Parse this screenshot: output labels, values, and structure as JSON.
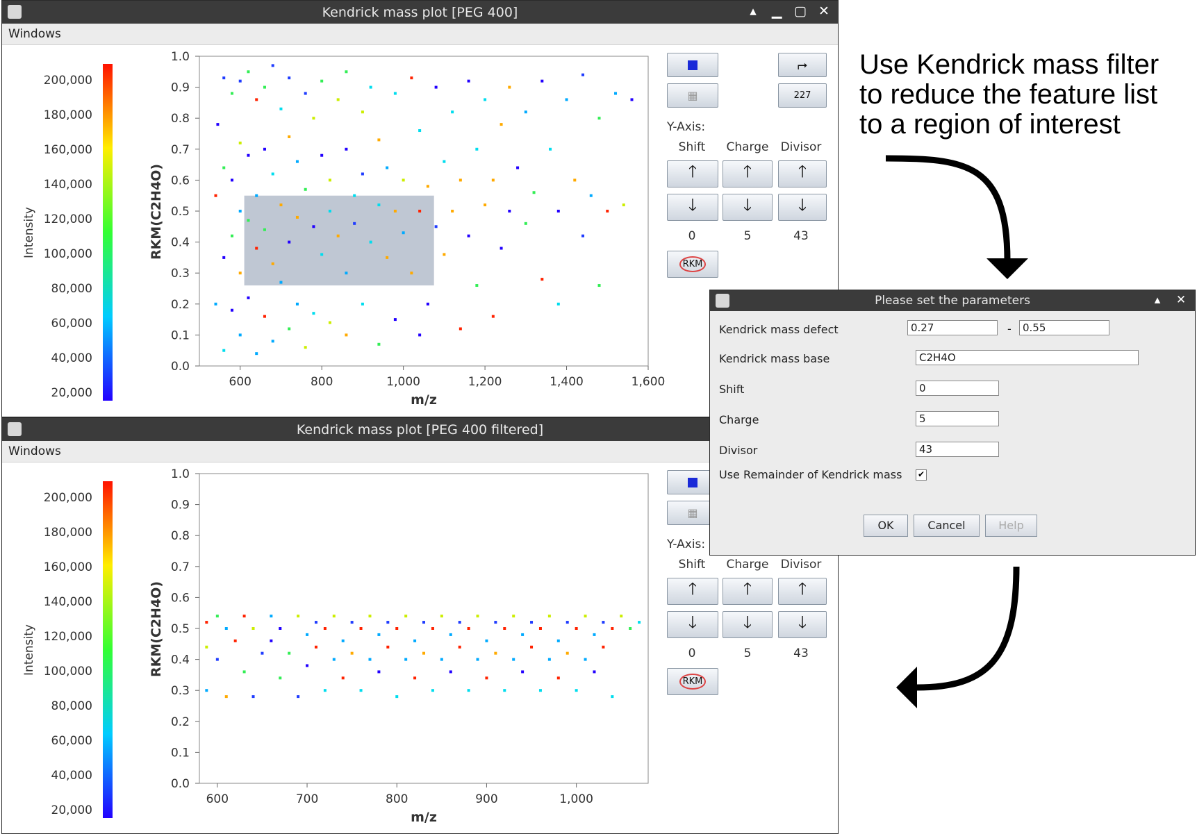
{
  "annotation": {
    "lines": [
      "Use Kendrick mass filter",
      "to reduce the feature list",
      "to a region of interest"
    ]
  },
  "menu_label": "Windows",
  "colorbar": {
    "label": "Intensity",
    "ticks": [
      "200,000",
      "180,000",
      "160,000",
      "140,000",
      "120,000",
      "100,000",
      "80,000",
      "60,000",
      "40,000",
      "20,000"
    ]
  },
  "side_panel": {
    "yaxis_label": "Y-Axis:",
    "col_labels": [
      "Shift",
      "Charge",
      "Divisor"
    ],
    "values": [
      "0",
      "5",
      "43"
    ],
    "rkm_label": "RKM",
    "up_glyph": "🡑",
    "down_glyph": "🡓"
  },
  "top_window": {
    "title": "Kendrick mass plot [PEG 400]"
  },
  "bottom_window": {
    "title": "Kendrick mass plot [PEG 400 filtered]"
  },
  "dialog": {
    "title": "Please set the parameters",
    "kmd_label": "Kendrick mass defect",
    "kmd_min": "0.27",
    "kmd_sep": "-",
    "kmd_max": "0.55",
    "base_label": "Kendrick mass base",
    "base_value": "C2H4O",
    "shift_label": "Shift",
    "shift_value": "0",
    "charge_label": "Charge",
    "charge_value": "5",
    "divisor_label": "Divisor",
    "divisor_value": "43",
    "remainder_label": "Use Remainder of Kendrick mass",
    "remainder_checked": true,
    "ok_label": "OK",
    "cancel_label": "Cancel",
    "help_label": "Help"
  },
  "chart_data": [
    {
      "type": "scatter",
      "title": "",
      "xlabel": "m/z",
      "ylabel": "RKM(C2H4O)",
      "xlim": [
        500,
        1600
      ],
      "ylim": [
        0,
        1
      ],
      "xticks": [
        "600",
        "800",
        "1,000",
        "1,200",
        "1,400",
        "1,600"
      ],
      "yticks": [
        "0.0",
        "0.1",
        "0.2",
        "0.3",
        "0.4",
        "0.5",
        "0.6",
        "0.7",
        "0.8",
        "0.9",
        "1.0"
      ],
      "selection_region": {
        "x": [
          610,
          1075
        ],
        "y": [
          0.26,
          0.55
        ]
      },
      "series": [
        {
          "points": [
            [
              540,
              0.55
            ],
            [
              540,
              0.2
            ],
            [
              545,
              0.78
            ],
            [
              560,
              0.93
            ],
            [
              560,
              0.64
            ],
            [
              560,
              0.35
            ],
            [
              560,
              0.05
            ],
            [
              580,
              0.88
            ],
            [
              580,
              0.6
            ],
            [
              580,
              0.42
            ],
            [
              580,
              0.18
            ],
            [
              600,
              0.92
            ],
            [
              600,
              0.72
            ],
            [
              600,
              0.5
            ],
            [
              600,
              0.3
            ],
            [
              600,
              0.1
            ],
            [
              620,
              0.95
            ],
            [
              620,
              0.68
            ],
            [
              620,
              0.47
            ],
            [
              620,
              0.22
            ],
            [
              640,
              0.86
            ],
            [
              640,
              0.55
            ],
            [
              640,
              0.38
            ],
            [
              640,
              0.04
            ],
            [
              660,
              0.9
            ],
            [
              660,
              0.7
            ],
            [
              660,
              0.44
            ],
            [
              660,
              0.16
            ],
            [
              680,
              0.97
            ],
            [
              680,
              0.62
            ],
            [
              680,
              0.33
            ],
            [
              680,
              0.08
            ],
            [
              700,
              0.83
            ],
            [
              700,
              0.52
            ],
            [
              700,
              0.27
            ],
            [
              720,
              0.93
            ],
            [
              720,
              0.74
            ],
            [
              720,
              0.4
            ],
            [
              720,
              0.12
            ],
            [
              740,
              0.66
            ],
            [
              740,
              0.48
            ],
            [
              740,
              0.2
            ],
            [
              760,
              0.88
            ],
            [
              760,
              0.57
            ],
            [
              760,
              0.06
            ],
            [
              780,
              0.8
            ],
            [
              780,
              0.45
            ],
            [
              780,
              0.17
            ],
            [
              800,
              0.92
            ],
            [
              800,
              0.68
            ],
            [
              800,
              0.36
            ],
            [
              820,
              0.6
            ],
            [
              820,
              0.5
            ],
            [
              820,
              0.14
            ],
            [
              840,
              0.86
            ],
            [
              840,
              0.42
            ],
            [
              860,
              0.95
            ],
            [
              860,
              0.7
            ],
            [
              860,
              0.3
            ],
            [
              860,
              0.1
            ],
            [
              880,
              0.55
            ],
            [
              880,
              0.46
            ],
            [
              900,
              0.82
            ],
            [
              900,
              0.62
            ],
            [
              900,
              0.2
            ],
            [
              920,
              0.9
            ],
            [
              920,
              0.4
            ],
            [
              940,
              0.73
            ],
            [
              940,
              0.52
            ],
            [
              940,
              0.07
            ],
            [
              960,
              0.64
            ],
            [
              960,
              0.35
            ],
            [
              980,
              0.88
            ],
            [
              980,
              0.5
            ],
            [
              980,
              0.15
            ],
            [
              1000,
              0.6
            ],
            [
              1000,
              0.43
            ],
            [
              1020,
              0.93
            ],
            [
              1020,
              0.3
            ],
            [
              1040,
              0.76
            ],
            [
              1040,
              0.5
            ],
            [
              1040,
              0.1
            ],
            [
              1060,
              0.58
            ],
            [
              1060,
              0.2
            ],
            [
              1080,
              0.9
            ],
            [
              1080,
              0.45
            ],
            [
              1100,
              0.66
            ],
            [
              1100,
              0.36
            ],
            [
              1120,
              0.82
            ],
            [
              1120,
              0.5
            ],
            [
              1140,
              0.6
            ],
            [
              1140,
              0.12
            ],
            [
              1160,
              0.92
            ],
            [
              1160,
              0.42
            ],
            [
              1180,
              0.7
            ],
            [
              1180,
              0.26
            ],
            [
              1200,
              0.86
            ],
            [
              1200,
              0.52
            ],
            [
              1220,
              0.6
            ],
            [
              1220,
              0.16
            ],
            [
              1240,
              0.78
            ],
            [
              1240,
              0.38
            ],
            [
              1260,
              0.9
            ],
            [
              1260,
              0.5
            ],
            [
              1280,
              0.64
            ],
            [
              1300,
              0.82
            ],
            [
              1300,
              0.46
            ],
            [
              1320,
              0.56
            ],
            [
              1340,
              0.92
            ],
            [
              1340,
              0.28
            ],
            [
              1360,
              0.7
            ],
            [
              1380,
              0.5
            ],
            [
              1380,
              0.2
            ],
            [
              1400,
              0.86
            ],
            [
              1420,
              0.6
            ],
            [
              1440,
              0.94
            ],
            [
              1440,
              0.42
            ],
            [
              1460,
              0.55
            ],
            [
              1480,
              0.8
            ],
            [
              1480,
              0.26
            ],
            [
              1500,
              0.5
            ],
            [
              1520,
              0.88
            ],
            [
              1540,
              0.52
            ],
            [
              1560,
              0.86
            ]
          ]
        }
      ]
    },
    {
      "type": "scatter",
      "title": "",
      "xlabel": "m/z",
      "ylabel": "RKM(C2H4O)",
      "xlim": [
        580,
        1080
      ],
      "ylim": [
        0,
        1
      ],
      "xticks": [
        "600",
        "700",
        "800",
        "900",
        "1,000"
      ],
      "yticks": [
        "0.0",
        "0.1",
        "0.2",
        "0.3",
        "0.4",
        "0.5",
        "0.6",
        "0.7",
        "0.8",
        "0.9",
        "1.0"
      ],
      "series": [
        {
          "points": [
            [
              588,
              0.52
            ],
            [
              588,
              0.44
            ],
            [
              588,
              0.3
            ],
            [
              600,
              0.54
            ],
            [
              600,
              0.4
            ],
            [
              610,
              0.5
            ],
            [
              610,
              0.28
            ],
            [
              620,
              0.46
            ],
            [
              630,
              0.54
            ],
            [
              630,
              0.36
            ],
            [
              640,
              0.5
            ],
            [
              640,
              0.28
            ],
            [
              650,
              0.42
            ],
            [
              660,
              0.54
            ],
            [
              660,
              0.46
            ],
            [
              670,
              0.5
            ],
            [
              670,
              0.34
            ],
            [
              680,
              0.42
            ],
            [
              690,
              0.54
            ],
            [
              690,
              0.28
            ],
            [
              700,
              0.48
            ],
            [
              700,
              0.38
            ],
            [
              710,
              0.52
            ],
            [
              710,
              0.44
            ],
            [
              720,
              0.5
            ],
            [
              720,
              0.3
            ],
            [
              730,
              0.54
            ],
            [
              730,
              0.4
            ],
            [
              740,
              0.46
            ],
            [
              740,
              0.34
            ],
            [
              750,
              0.52
            ],
            [
              750,
              0.42
            ],
            [
              760,
              0.5
            ],
            [
              760,
              0.3
            ],
            [
              770,
              0.54
            ],
            [
              770,
              0.4
            ],
            [
              780,
              0.48
            ],
            [
              780,
              0.36
            ],
            [
              790,
              0.52
            ],
            [
              790,
              0.44
            ],
            [
              800,
              0.5
            ],
            [
              800,
              0.28
            ],
            [
              810,
              0.54
            ],
            [
              810,
              0.4
            ],
            [
              820,
              0.46
            ],
            [
              820,
              0.34
            ],
            [
              830,
              0.52
            ],
            [
              830,
              0.42
            ],
            [
              840,
              0.5
            ],
            [
              840,
              0.3
            ],
            [
              850,
              0.54
            ],
            [
              850,
              0.4
            ],
            [
              860,
              0.48
            ],
            [
              860,
              0.36
            ],
            [
              870,
              0.52
            ],
            [
              870,
              0.44
            ],
            [
              880,
              0.5
            ],
            [
              880,
              0.3
            ],
            [
              890,
              0.54
            ],
            [
              890,
              0.4
            ],
            [
              900,
              0.46
            ],
            [
              900,
              0.34
            ],
            [
              910,
              0.52
            ],
            [
              910,
              0.42
            ],
            [
              920,
              0.5
            ],
            [
              920,
              0.3
            ],
            [
              930,
              0.54
            ],
            [
              930,
              0.4
            ],
            [
              940,
              0.48
            ],
            [
              940,
              0.36
            ],
            [
              950,
              0.52
            ],
            [
              950,
              0.44
            ],
            [
              960,
              0.5
            ],
            [
              960,
              0.3
            ],
            [
              970,
              0.54
            ],
            [
              970,
              0.4
            ],
            [
              980,
              0.46
            ],
            [
              980,
              0.34
            ],
            [
              990,
              0.52
            ],
            [
              990,
              0.42
            ],
            [
              1000,
              0.5
            ],
            [
              1000,
              0.3
            ],
            [
              1010,
              0.54
            ],
            [
              1010,
              0.4
            ],
            [
              1020,
              0.48
            ],
            [
              1020,
              0.36
            ],
            [
              1030,
              0.52
            ],
            [
              1030,
              0.44
            ],
            [
              1040,
              0.5
            ],
            [
              1040,
              0.28
            ],
            [
              1050,
              0.54
            ],
            [
              1060,
              0.5
            ],
            [
              1070,
              0.52
            ]
          ]
        }
      ]
    }
  ]
}
